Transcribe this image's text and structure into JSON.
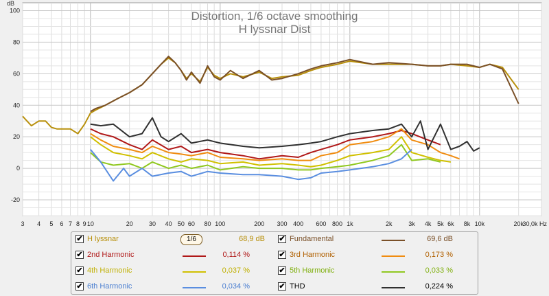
{
  "chart_data": {
    "type": "line",
    "title": "Distortion, 1/6 octave smoothing",
    "subtitle": "H lyssnar Dist",
    "ylabel": "dB",
    "xlabel": "Hz",
    "x_scale": "log",
    "xlim": [
      3,
      30000
    ],
    "ylim": [
      -30,
      105
    ],
    "grid": true,
    "yticks": [
      "100",
      "80",
      "60",
      "40",
      "20",
      "0",
      "-20"
    ],
    "ytick_values": [
      100,
      80,
      60,
      40,
      20,
      0,
      -20
    ],
    "xticks": [
      "3",
      "4",
      "5",
      "6",
      "7",
      "8",
      "9",
      "10",
      "20",
      "30",
      "40",
      "50",
      "60",
      "80",
      "100",
      "200",
      "300",
      "400",
      "600",
      "800",
      "1k",
      "2k",
      "3k",
      "4k",
      "5k",
      "6k",
      "8k",
      "10k",
      "20k",
      "30,0k Hz"
    ],
    "xtick_values": [
      3,
      4,
      5,
      6,
      7,
      8,
      9,
      10,
      20,
      30,
      40,
      50,
      60,
      80,
      100,
      200,
      300,
      400,
      600,
      800,
      1000,
      2000,
      3000,
      4000,
      5000,
      6000,
      8000,
      10000,
      20000,
      30000
    ],
    "series": [
      {
        "name": "H lyssnar",
        "color": "#b8900c",
        "x": [
          3,
          3.5,
          4,
          4.5,
          5,
          5.5,
          6,
          7,
          8,
          9,
          10,
          11,
          13,
          16,
          20,
          25,
          30,
          35,
          40,
          45,
          50,
          55,
          60,
          70,
          80,
          90,
          100,
          120,
          150,
          200,
          250,
          300,
          400,
          500,
          600,
          800,
          1000,
          1500,
          2000,
          3000,
          4000,
          5000,
          6000,
          8000,
          10000,
          12000,
          15000,
          20000
        ],
        "y": [
          33,
          27,
          30,
          30,
          26,
          25,
          25,
          25,
          22,
          28,
          35,
          37,
          40,
          44,
          48,
          53,
          60,
          66,
          70,
          67,
          62,
          57,
          60,
          55,
          64,
          59,
          57,
          60,
          58,
          61,
          57,
          58,
          59,
          62,
          64,
          66,
          68,
          66,
          66,
          66,
          65,
          65,
          66,
          65,
          64,
          66,
          64,
          50
        ]
      },
      {
        "name": "Fundamental",
        "color": "#7a5028",
        "x": [
          10,
          11,
          13,
          16,
          20,
          25,
          30,
          35,
          40,
          45,
          50,
          55,
          60,
          70,
          80,
          90,
          100,
          120,
          150,
          200,
          250,
          300,
          400,
          500,
          600,
          800,
          1000,
          1500,
          2000,
          3000,
          4000,
          5000,
          6000,
          8000,
          10000,
          12000,
          15000,
          20000
        ],
        "y": [
          36,
          38,
          40,
          44,
          48,
          53,
          60,
          66,
          71,
          67,
          62,
          56,
          61,
          54,
          65,
          58,
          56,
          62,
          57,
          62,
          56,
          57,
          60,
          63,
          65,
          67,
          69,
          66,
          67,
          66,
          65,
          65,
          66,
          66,
          64,
          66,
          63,
          41
        ]
      },
      {
        "name": "2nd Harmonic",
        "color": "#b01818",
        "x": [
          10,
          12,
          15,
          20,
          25,
          30,
          40,
          50,
          60,
          80,
          100,
          150,
          200,
          300,
          400,
          500,
          600,
          800,
          1000,
          1500,
          2000,
          2500,
          3000,
          4000,
          5000
        ],
        "y": [
          25,
          22,
          20,
          15,
          12,
          18,
          12,
          14,
          10,
          12,
          10,
          8,
          6,
          8,
          7,
          10,
          12,
          15,
          18,
          20,
          22,
          24,
          22,
          18,
          15
        ]
      },
      {
        "name": "3rd Harmonic",
        "color": "#f08c10",
        "x": [
          10,
          12,
          15,
          20,
          25,
          30,
          40,
          50,
          60,
          80,
          100,
          150,
          200,
          300,
          400,
          500,
          600,
          800,
          1000,
          1500,
          2000,
          2500,
          3000,
          4000,
          5000,
          6000,
          7000
        ],
        "y": [
          22,
          18,
          14,
          12,
          10,
          14,
          10,
          9,
          8,
          10,
          7,
          6,
          5,
          6,
          5,
          5,
          8,
          10,
          15,
          17,
          20,
          25,
          18,
          15,
          10,
          8,
          6
        ]
      },
      {
        "name": "4th Harmonic",
        "color": "#d0c000",
        "x": [
          10,
          12,
          15,
          20,
          25,
          30,
          40,
          50,
          60,
          80,
          100,
          150,
          200,
          300,
          400,
          500,
          600,
          800,
          1000,
          1500,
          2000,
          2500,
          3000,
          4000,
          5000,
          6000
        ],
        "y": [
          20,
          15,
          10,
          8,
          6,
          10,
          6,
          4,
          6,
          5,
          3,
          4,
          2,
          3,
          2,
          1,
          2,
          5,
          8,
          10,
          12,
          20,
          10,
          7,
          5,
          4
        ]
      },
      {
        "name": "5th Harmonic",
        "color": "#90c820",
        "x": [
          10,
          12,
          15,
          20,
          25,
          30,
          40,
          50,
          60,
          80,
          100,
          150,
          200,
          300,
          400,
          500,
          600,
          800,
          1000,
          1500,
          2000,
          2500,
          3000,
          4000,
          5000
        ],
        "y": [
          10,
          4,
          2,
          3,
          0,
          4,
          0,
          2,
          0,
          2,
          -1,
          1,
          0,
          0,
          -1,
          -1,
          0,
          1,
          2,
          5,
          8,
          15,
          5,
          6,
          4
        ]
      },
      {
        "name": "6th Harmonic",
        "color": "#5a8ee0",
        "x": [
          10,
          12,
          15,
          18,
          20,
          25,
          30,
          40,
          50,
          60,
          80,
          100,
          150,
          200,
          300,
          400,
          500,
          600,
          800,
          1000,
          1500,
          2000,
          2500,
          3000
        ],
        "y": [
          12,
          4,
          -8,
          0,
          -5,
          0,
          -5,
          -3,
          -2,
          -5,
          -2,
          -3,
          -4,
          -4,
          -5,
          -7,
          -6,
          -3,
          -2,
          -1,
          1,
          3,
          6,
          12
        ]
      },
      {
        "name": "THD",
        "color": "#303030",
        "x": [
          10,
          12,
          15,
          20,
          25,
          30,
          35,
          40,
          50,
          60,
          80,
          100,
          150,
          200,
          300,
          400,
          500,
          600,
          800,
          1000,
          1500,
          2000,
          2500,
          3000,
          3500,
          4000,
          5000,
          6000,
          7000,
          8000,
          9000,
          10000
        ],
        "y": [
          28,
          27,
          28,
          20,
          22,
          32,
          20,
          17,
          22,
          16,
          18,
          16,
          14,
          13,
          14,
          15,
          16,
          17,
          20,
          22,
          24,
          25,
          28,
          20,
          30,
          12,
          28,
          12,
          14,
          17,
          11,
          13
        ]
      }
    ]
  },
  "legend": {
    "smoothing_label": "1/6",
    "items": [
      {
        "name": "H lyssnar",
        "value": "68,9 dB",
        "checked": "✔",
        "color": "#b8900c",
        "text_color": "#b8900c"
      },
      {
        "name": "Fundamental",
        "value": "69,6 dB",
        "checked": "✔",
        "color": "#7a5028",
        "text_color": "#7a5028"
      },
      {
        "name": "2nd Harmonic",
        "value": "0,114 %",
        "checked": "✔",
        "color": "#b01818",
        "text_color": "#b01818"
      },
      {
        "name": "3rd Harmonic",
        "value": "0,173 %",
        "checked": "✔",
        "color": "#f08c10",
        "text_color": "#b06000"
      },
      {
        "name": "4th Harmonic",
        "value": "0,037 %",
        "checked": "✔",
        "color": "#d0c000",
        "text_color": "#c0b000"
      },
      {
        "name": "5th Harmonic",
        "value": "0,033 %",
        "checked": "✔",
        "color": "#90c820",
        "text_color": "#80b010"
      },
      {
        "name": "6th Harmonic",
        "value": "0,034 %",
        "checked": "✔",
        "color": "#5a8ee0",
        "text_color": "#4a7ed0"
      },
      {
        "name": "THD",
        "value": "0,224 %",
        "checked": "✔",
        "color": "#303030",
        "text_color": "#000000"
      }
    ]
  }
}
